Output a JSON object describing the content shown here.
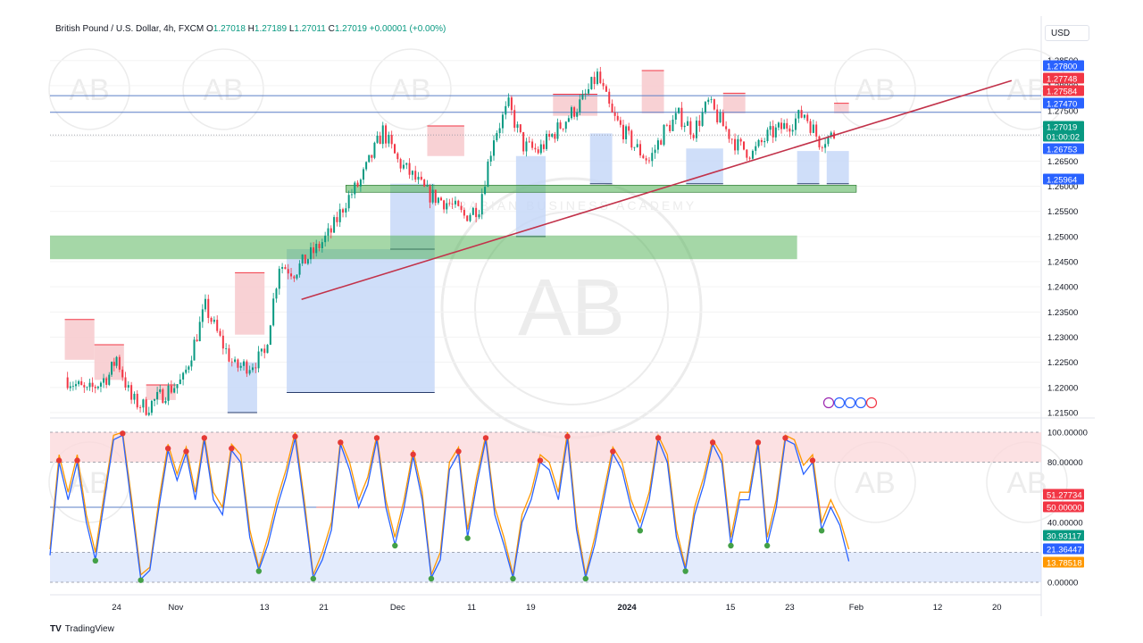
{
  "header": {
    "symbol": "British Pound / U.S. Dollar, 4h, FXCM",
    "open_label": "O",
    "open": "1.27018",
    "high_label": "H",
    "high": "1.27189",
    "low_label": "L",
    "low": "1.27011",
    "close_label": "C",
    "close": "1.27019",
    "change": "+0.00001 (+0.00%)"
  },
  "currency_button": "USD",
  "footer": {
    "brand": "TradingView",
    "logo": "TV"
  },
  "watermark": {
    "letters": "AB",
    "ring_text": "ARABIAN BUSINESS ACADEMY"
  },
  "colors": {
    "up": "#089981",
    "down": "#f23645",
    "trend": "#c2324a",
    "zone_green": "#4caf50",
    "supply": "#f7c9cc",
    "demand": "#c3d6f7",
    "stoch_k": "#2962ff",
    "stoch_d": "#ff9800"
  },
  "chart_data": [
    {
      "type": "candlestick",
      "title": "British Pound / U.S. Dollar, 4h, FXCM",
      "ylim": [
        1.215,
        1.2885
      ],
      "y_ticks": [
        "1.28500",
        "1.28000",
        "1.27500",
        "1.27000",
        "1.26500",
        "1.26000",
        "1.25500",
        "1.25000",
        "1.24500",
        "1.24000",
        "1.23500",
        "1.23000",
        "1.22500",
        "1.22000",
        "1.21500"
      ],
      "x_ticks": [
        "24",
        "Nov",
        "13",
        "21",
        "Dec",
        "11",
        "19",
        "2024",
        "15",
        "23",
        "Feb",
        "12",
        "20"
      ],
      "price_labels": [
        {
          "value": "1.27800",
          "color": "#2962ff"
        },
        {
          "value": "1.27748",
          "color": "#f23645"
        },
        {
          "value": "1.27584",
          "color": "#f23645"
        },
        {
          "value": "1.27470",
          "color": "#2962ff"
        },
        {
          "value": "1.27019",
          "color": "#089981"
        },
        {
          "value": "01:00:02",
          "color": "#089981"
        },
        {
          "value": "1.26753",
          "color": "#2962ff"
        },
        {
          "value": "1.25964",
          "color": "#2962ff"
        }
      ],
      "horizontal_levels": [
        1.278,
        1.2747
      ],
      "green_zones": [
        [
          1.2588,
          1.2602
        ],
        [
          1.2455,
          1.2502
        ]
      ],
      "trendline": [
        {
          "x": "2023-11-18",
          "y": 1.2375
        },
        {
          "x": "2024-02-22",
          "y": 1.281
        }
      ],
      "close_path": [
        {
          "x": "2023-10-17",
          "y": 1.222
        },
        {
          "x": "2023-10-20",
          "y": 1.219
        },
        {
          "x": "2023-10-23",
          "y": 1.2225
        },
        {
          "x": "2023-10-24",
          "y": 1.226
        },
        {
          "x": "2023-10-26",
          "y": 1.2175
        },
        {
          "x": "2023-10-28",
          "y": 1.216
        },
        {
          "x": "2023-10-31",
          "y": 1.2195
        },
        {
          "x": "2023-11-02",
          "y": 1.2215
        },
        {
          "x": "2023-11-05",
          "y": 1.236
        },
        {
          "x": "2023-11-07",
          "y": 1.2295
        },
        {
          "x": "2023-11-09",
          "y": 1.224
        },
        {
          "x": "2023-11-11",
          "y": 1.2245
        },
        {
          "x": "2023-11-13",
          "y": 1.2265
        },
        {
          "x": "2023-11-15",
          "y": 1.2445
        },
        {
          "x": "2023-11-17",
          "y": 1.243
        },
        {
          "x": "2023-11-20",
          "y": 1.2475
        },
        {
          "x": "2023-11-22",
          "y": 1.251
        },
        {
          "x": "2023-11-24",
          "y": 1.257
        },
        {
          "x": "2023-11-26",
          "y": 1.261
        },
        {
          "x": "2023-11-29",
          "y": 1.271
        },
        {
          "x": "2023-12-01",
          "y": 1.265
        },
        {
          "x": "2023-12-03",
          "y": 1.262
        },
        {
          "x": "2023-12-05",
          "y": 1.2585
        },
        {
          "x": "2023-12-08",
          "y": 1.2565
        },
        {
          "x": "2023-12-10",
          "y": 1.254
        },
        {
          "x": "2023-12-12",
          "y": 1.256
        },
        {
          "x": "2023-12-14",
          "y": 1.27
        },
        {
          "x": "2023-12-16",
          "y": 1.276
        },
        {
          "x": "2023-12-18",
          "y": 1.268
        },
        {
          "x": "2023-12-20",
          "y": 1.267
        },
        {
          "x": "2023-12-23",
          "y": 1.272
        },
        {
          "x": "2023-12-26",
          "y": 1.277
        },
        {
          "x": "2023-12-28",
          "y": 1.282
        },
        {
          "x": "2023-12-30",
          "y": 1.274
        },
        {
          "x": "2024-01-02",
          "y": 1.268
        },
        {
          "x": "2024-01-04",
          "y": 1.265
        },
        {
          "x": "2024-01-06",
          "y": 1.271
        },
        {
          "x": "2024-01-08",
          "y": 1.274
        },
        {
          "x": "2024-01-10",
          "y": 1.271
        },
        {
          "x": "2024-01-12",
          "y": 1.2765
        },
        {
          "x": "2024-01-14",
          "y": 1.272
        },
        {
          "x": "2024-01-16",
          "y": 1.268
        },
        {
          "x": "2024-01-18",
          "y": 1.2665
        },
        {
          "x": "2024-01-20",
          "y": 1.27
        },
        {
          "x": "2024-01-23",
          "y": 1.2725
        },
        {
          "x": "2024-01-25",
          "y": 1.2745
        },
        {
          "x": "2024-01-27",
          "y": 1.269
        },
        {
          "x": "2024-01-29",
          "y": 1.2702
        }
      ],
      "supply_boxes": [
        {
          "x0": "2023-10-17",
          "x1": "2023-10-21",
          "y0": 1.2255,
          "y1": 1.2335
        },
        {
          "x0": "2023-10-21",
          "x1": "2023-10-25",
          "y0": 1.2215,
          "y1": 1.2285
        },
        {
          "x0": "2023-10-28",
          "x1": "2023-11-01",
          "y0": 1.2175,
          "y1": 1.2205
        },
        {
          "x0": "2023-11-09",
          "x1": "2023-11-13",
          "y0": 1.2305,
          "y1": 1.2428
        },
        {
          "x0": "2023-12-05",
          "x1": "2023-12-10",
          "y0": 1.266,
          "y1": 1.272
        },
        {
          "x0": "2023-12-22",
          "x1": "2023-12-28",
          "y0": 1.274,
          "y1": 1.2783
        },
        {
          "x0": "2024-01-03",
          "x1": "2024-01-06",
          "y0": 1.2745,
          "y1": 1.283
        },
        {
          "x0": "2024-01-14",
          "x1": "2024-01-17",
          "y0": 1.2745,
          "y1": 1.2785
        },
        {
          "x0": "2024-01-29",
          "x1": "2024-01-31",
          "y0": 1.2745,
          "y1": 1.2765
        }
      ],
      "demand_boxes": [
        {
          "x0": "2023-11-08",
          "x1": "2023-11-12",
          "y0": 1.215,
          "y1": 1.225
        },
        {
          "x0": "2023-11-16",
          "x1": "2023-12-06",
          "y0": 1.219,
          "y1": 1.2475
        },
        {
          "x0": "2023-11-30",
          "x1": "2023-12-06",
          "y0": 1.2475,
          "y1": 1.2605
        },
        {
          "x0": "2023-12-17",
          "x1": "2023-12-21",
          "y0": 1.25,
          "y1": 1.266
        },
        {
          "x0": "2023-12-27",
          "x1": "2023-12-30",
          "y0": 1.2605,
          "y1": 1.2705
        },
        {
          "x0": "2024-01-09",
          "x1": "2024-01-14",
          "y0": 1.2605,
          "y1": 1.2675
        },
        {
          "x0": "2024-01-24",
          "x1": "2024-01-27",
          "y0": 1.2605,
          "y1": 1.267
        },
        {
          "x0": "2024-01-28",
          "x1": "2024-01-31",
          "y0": 1.2605,
          "y1": 1.267
        }
      ]
    },
    {
      "type": "line",
      "title": "",
      "ylim": [
        0,
        100
      ],
      "y_ticks": [
        "100.00000",
        "80.00000",
        "50.00000",
        "40.00000",
        "0.00000"
      ],
      "value_labels": [
        {
          "value": "51.27734",
          "color": "#f23645"
        },
        {
          "value": "50.00000",
          "color": "#f23645"
        },
        {
          "value": "30.93117",
          "color": "#089981"
        },
        {
          "value": "21.36447",
          "color": "#2962ff"
        },
        {
          "value": "13.78518",
          "color": "#ff9800"
        }
      ],
      "bands": {
        "overbought": [
          80,
          100
        ],
        "oversold": [
          0,
          20
        ],
        "mid": 50
      },
      "series": [
        {
          "values": [
            22,
            85,
            60,
            85,
            45,
            20,
            60,
            98,
            100,
            55,
            5,
            10,
            55,
            92,
            72,
            90,
            60,
            98,
            60,
            50,
            92,
            85,
            35,
            10,
            30,
            55,
            75,
            100,
            55,
            5,
            20,
            40,
            95,
            80,
            55,
            70,
            98,
            55,
            30,
            55,
            88,
            60,
            5,
            20,
            80,
            90,
            35,
            70,
            98,
            50,
            30,
            5,
            45,
            60,
            85,
            80,
            60,
            100,
            40,
            5,
            30,
            60,
            90,
            80,
            55,
            40,
            60,
            98,
            85,
            35,
            10,
            50,
            70,
            95,
            85,
            30,
            60,
            60,
            95,
            30,
            55,
            98,
            95,
            78,
            85,
            40,
            55,
            42,
            22
          ]
        },
        {
          "values": [
            18,
            80,
            55,
            80,
            40,
            15,
            55,
            95,
            98,
            50,
            2,
            8,
            50,
            88,
            68,
            86,
            55,
            95,
            55,
            45,
            88,
            80,
            30,
            8,
            25,
            50,
            70,
            96,
            50,
            3,
            15,
            35,
            92,
            75,
            50,
            65,
            95,
            50,
            25,
            50,
            84,
            55,
            3,
            15,
            75,
            86,
            30,
            65,
            95,
            45,
            25,
            3,
            40,
            55,
            80,
            75,
            55,
            96,
            35,
            3,
            25,
            55,
            86,
            75,
            50,
            35,
            55,
            95,
            80,
            30,
            8,
            45,
            65,
            92,
            80,
            25,
            55,
            55,
            92,
            25,
            50,
            95,
            92,
            72,
            80,
            35,
            50,
            38,
            14
          ]
        }
      ]
    }
  ]
}
